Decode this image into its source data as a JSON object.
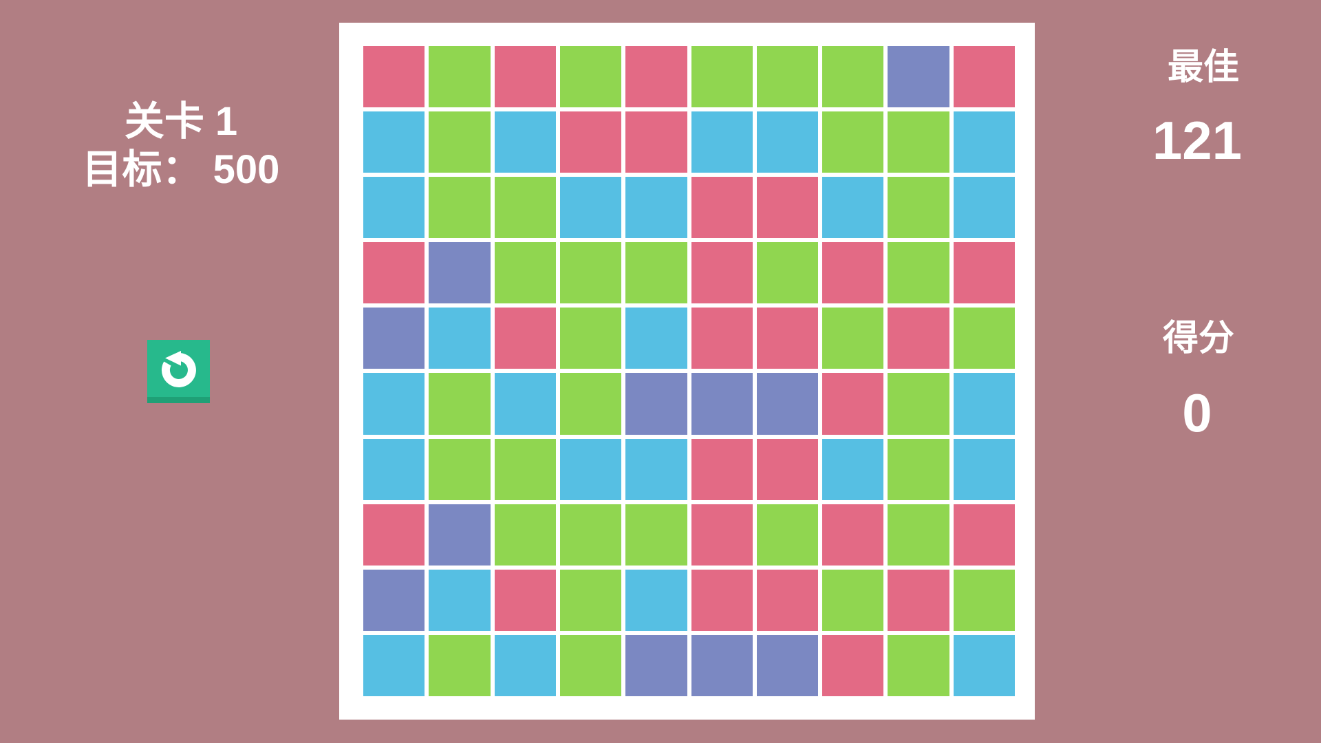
{
  "colors": {
    "background": "#b17e83",
    "board_bg": "#ffffff",
    "text": "#ffffff",
    "button_bg": "#27b98c",
    "button_shadow": "#1fa076",
    "tile_red": "#e36a85",
    "tile_green": "#90d650",
    "tile_blue": "#56bfe3",
    "tile_purple": "#7b88c2"
  },
  "left_panel": {
    "level_text": "关卡 1",
    "target_text": "目标： 500"
  },
  "restart_button": {
    "icon": "restart-icon"
  },
  "right_panel": {
    "best_label": "最佳",
    "best_value": "121",
    "score_label": "得分",
    "score_value": "0"
  },
  "board": {
    "rows": 10,
    "cols": 10,
    "palette": {
      "R": "tile_red",
      "G": "tile_green",
      "B": "tile_blue",
      "P": "tile_purple"
    },
    "grid": [
      "RGRGRGGGPR",
      "BGBRRBBGGB",
      "BGGBBRRBGB",
      "RPGGGRGRGR",
      "PBRGBRRGRG",
      "BGBGPPPRGB",
      "BGGBBRRBGB",
      "RPGGGRGRGR",
      "PBRGBRRGRG",
      "BGBGPPPRGB"
    ]
  }
}
